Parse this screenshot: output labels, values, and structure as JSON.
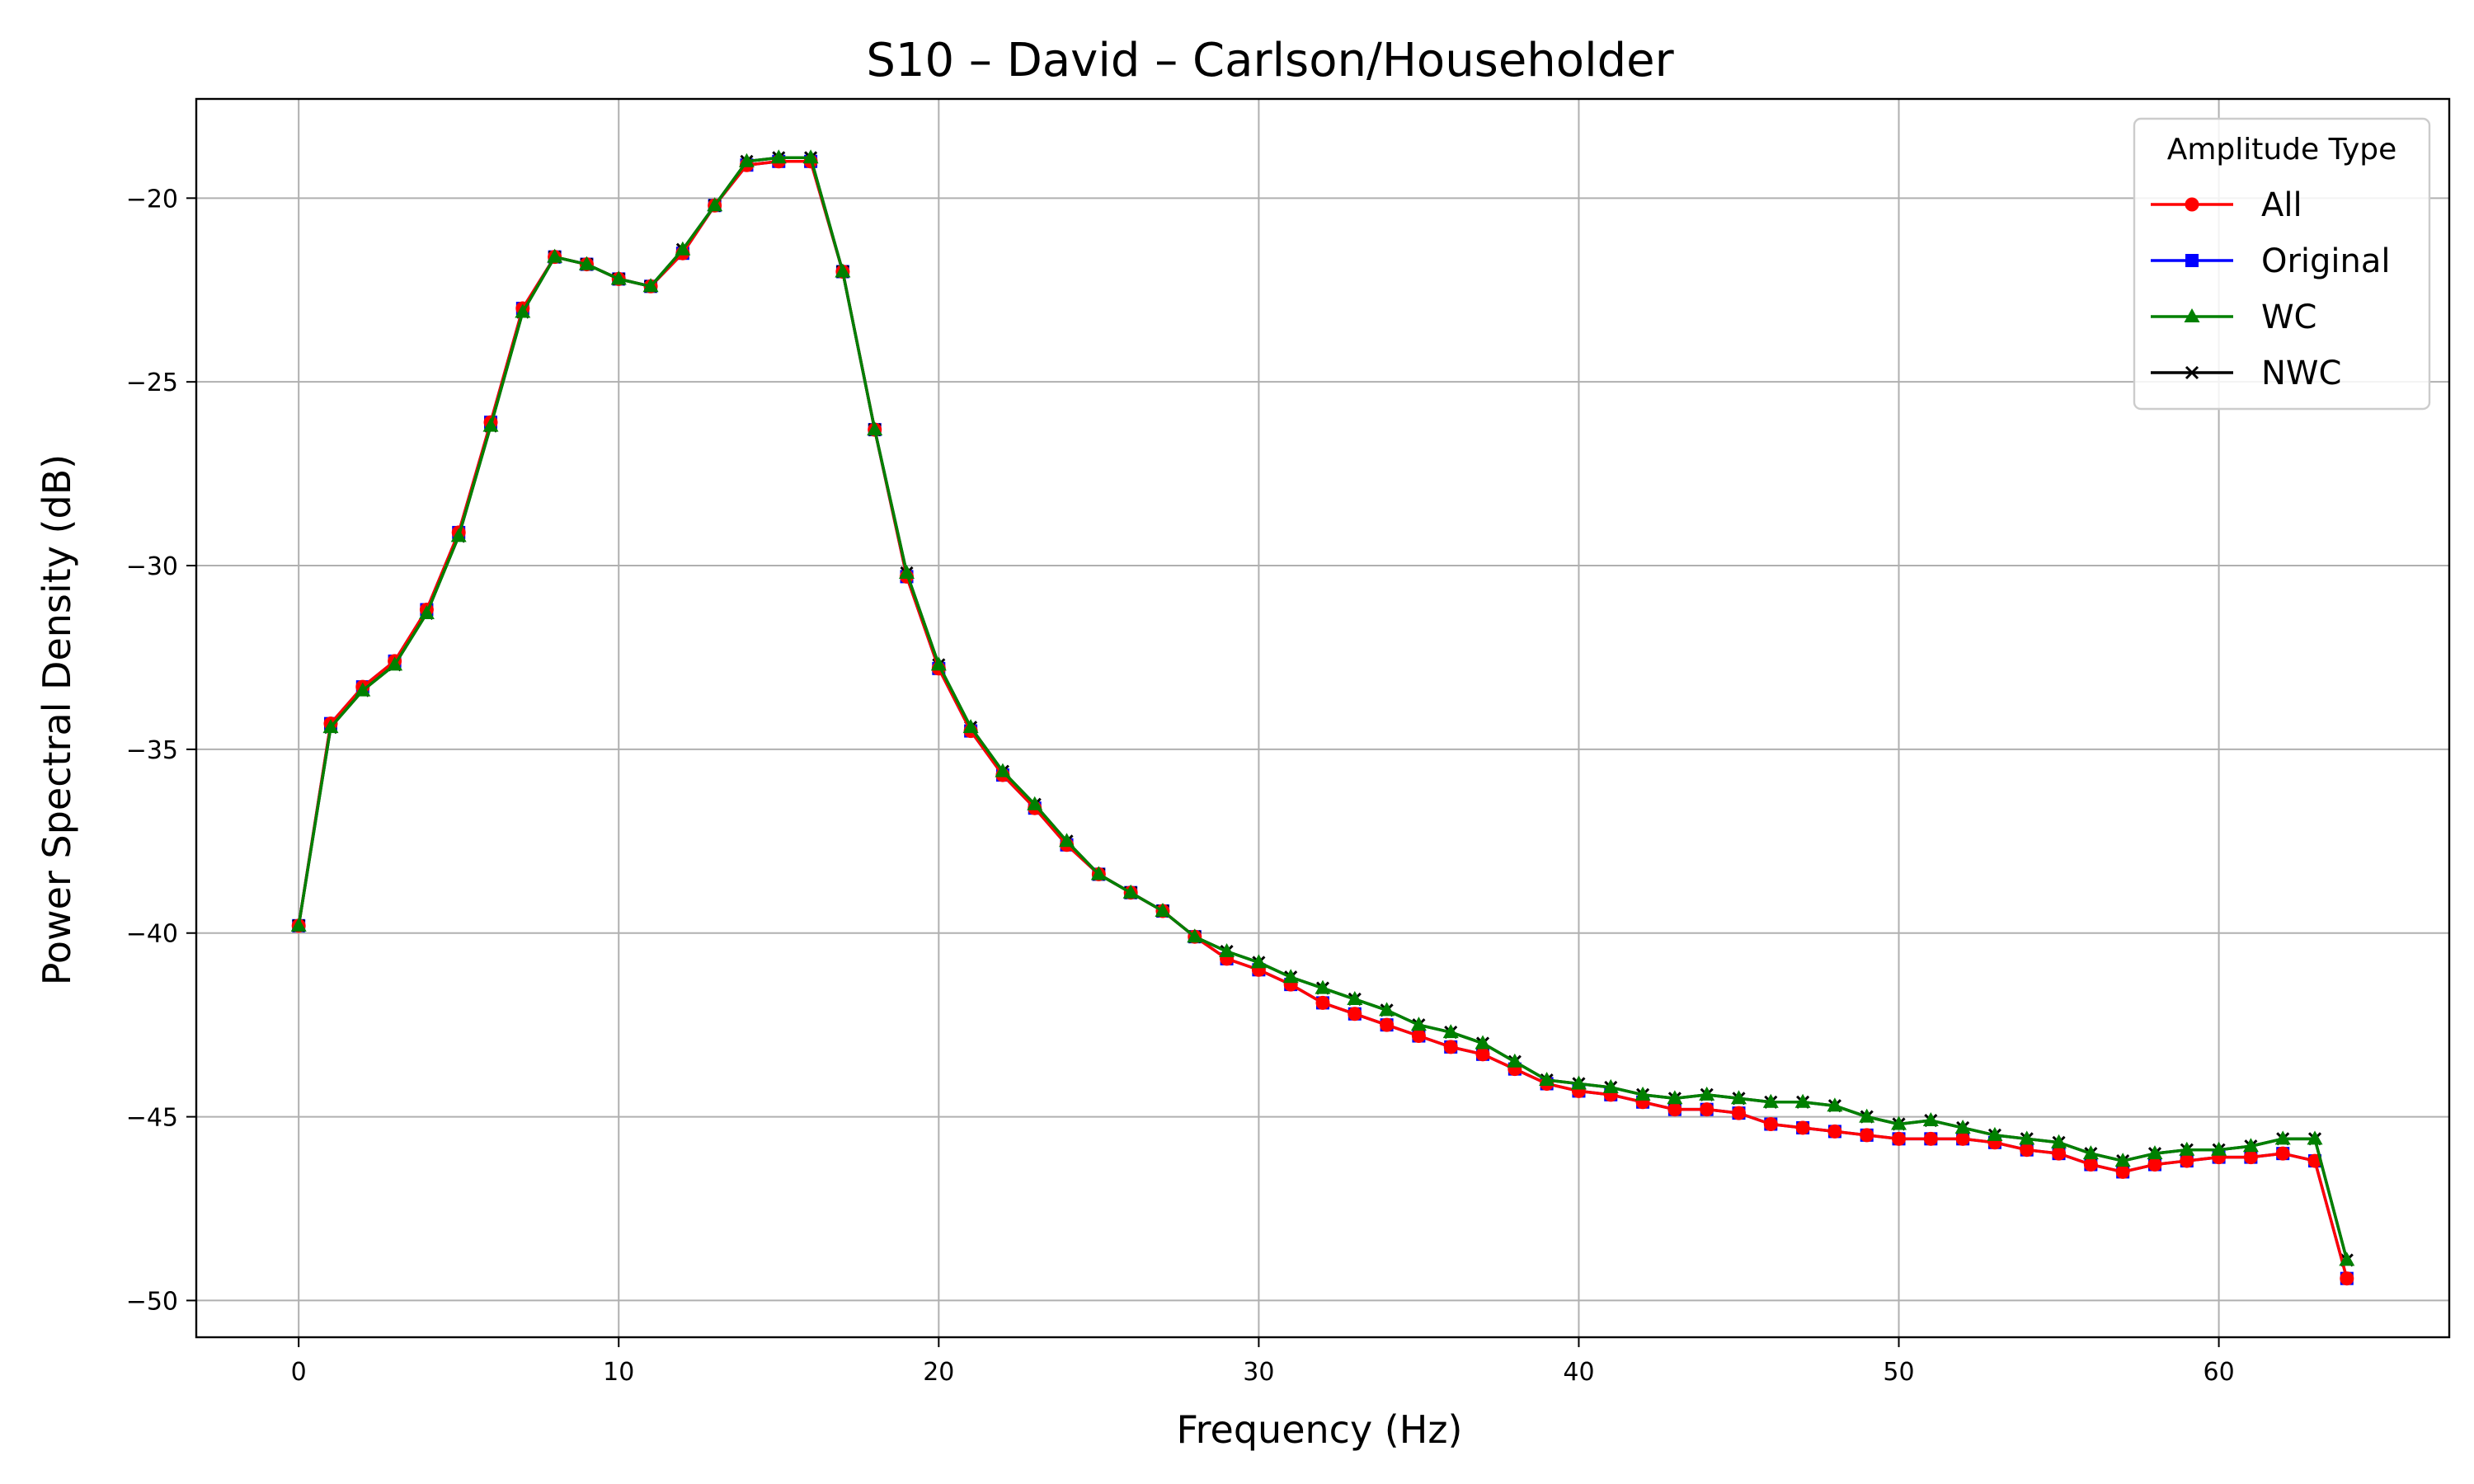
{
  "chart_data": {
    "type": "line",
    "title": "S10 – David – Carlson/Householder",
    "xlabel": "Frequency (Hz)",
    "ylabel": "Power Spectral Density (dB)",
    "xlim": [
      -3.2,
      67.2
    ],
    "ylim": [
      -51,
      -17.3
    ],
    "xticks": [
      0,
      10,
      20,
      30,
      40,
      50,
      60
    ],
    "yticks": [
      -20,
      -25,
      -30,
      -35,
      -40,
      -45,
      -50
    ],
    "xtick_labels": [
      "0",
      "10",
      "20",
      "30",
      "40",
      "50",
      "60"
    ],
    "ytick_labels": [
      "−20",
      "−25",
      "−30",
      "−35",
      "−40",
      "−45",
      "−50"
    ],
    "grid": true,
    "legend": {
      "title": "Amplitude Type",
      "placement": "top-right"
    },
    "x": [
      0,
      1,
      2,
      3,
      4,
      5,
      6,
      7,
      8,
      9,
      10,
      11,
      12,
      13,
      14,
      15,
      16,
      17,
      18,
      19,
      20,
      21,
      22,
      23,
      24,
      25,
      26,
      27,
      28,
      29,
      30,
      31,
      32,
      33,
      34,
      35,
      36,
      37,
      38,
      39,
      40,
      41,
      42,
      43,
      44,
      45,
      46,
      47,
      48,
      49,
      50,
      51,
      52,
      53,
      54,
      55,
      56,
      57,
      58,
      59,
      60,
      61,
      62,
      63,
      64
    ],
    "series": [
      {
        "name": "All",
        "color": "#ff0000",
        "marker": "circle",
        "values": [
          -39.8,
          -34.3,
          -33.3,
          -32.6,
          -31.2,
          -29.1,
          -26.1,
          -23.0,
          -21.6,
          -21.8,
          -22.2,
          -22.4,
          -21.5,
          -20.2,
          -19.1,
          -19.0,
          -19.0,
          -22.0,
          -26.3,
          -30.3,
          -32.8,
          -34.5,
          -35.7,
          -36.6,
          -37.6,
          -38.4,
          -38.9,
          -39.4,
          -40.1,
          -40.7,
          -41.0,
          -41.4,
          -41.9,
          -42.2,
          -42.5,
          -42.8,
          -43.1,
          -43.3,
          -43.7,
          -44.1,
          -44.3,
          -44.4,
          -44.6,
          -44.8,
          -44.8,
          -44.9,
          -45.2,
          -45.3,
          -45.4,
          -45.5,
          -45.6,
          -45.6,
          -45.6,
          -45.7,
          -45.9,
          -46.0,
          -46.3,
          -46.5,
          -46.3,
          -46.2,
          -46.1,
          -46.1,
          -46.0,
          -46.2,
          -49.4
        ]
      },
      {
        "name": "Original",
        "color": "#0000ff",
        "marker": "square",
        "values": [
          -39.8,
          -34.3,
          -33.3,
          -32.6,
          -31.2,
          -29.1,
          -26.1,
          -23.0,
          -21.6,
          -21.8,
          -22.2,
          -22.4,
          -21.5,
          -20.2,
          -19.1,
          -19.0,
          -19.0,
          -22.0,
          -26.3,
          -30.3,
          -32.8,
          -34.5,
          -35.7,
          -36.6,
          -37.6,
          -38.4,
          -38.9,
          -39.4,
          -40.1,
          -40.7,
          -41.0,
          -41.4,
          -41.9,
          -42.2,
          -42.5,
          -42.8,
          -43.1,
          -43.3,
          -43.7,
          -44.1,
          -44.3,
          -44.4,
          -44.6,
          -44.8,
          -44.8,
          -44.9,
          -45.2,
          -45.3,
          -45.4,
          -45.5,
          -45.6,
          -45.6,
          -45.6,
          -45.7,
          -45.9,
          -46.0,
          -46.3,
          -46.5,
          -46.3,
          -46.2,
          -46.1,
          -46.1,
          -46.0,
          -46.2,
          -49.4
        ]
      },
      {
        "name": "WC",
        "color": "#008000",
        "marker": "triangle",
        "values": [
          -39.8,
          -34.4,
          -33.4,
          -32.7,
          -31.3,
          -29.2,
          -26.2,
          -23.1,
          -21.6,
          -21.8,
          -22.2,
          -22.4,
          -21.4,
          -20.2,
          -19.0,
          -18.9,
          -18.9,
          -22.0,
          -26.3,
          -30.2,
          -32.7,
          -34.4,
          -35.6,
          -36.5,
          -37.5,
          -38.4,
          -38.9,
          -39.4,
          -40.1,
          -40.5,
          -40.8,
          -41.2,
          -41.5,
          -41.8,
          -42.1,
          -42.5,
          -42.7,
          -43.0,
          -43.5,
          -44.0,
          -44.1,
          -44.2,
          -44.4,
          -44.5,
          -44.4,
          -44.5,
          -44.6,
          -44.6,
          -44.7,
          -45.0,
          -45.2,
          -45.1,
          -45.3,
          -45.5,
          -45.6,
          -45.7,
          -46.0,
          -46.2,
          -46.0,
          -45.9,
          -45.9,
          -45.8,
          -45.6,
          -45.6,
          -48.9
        ]
      },
      {
        "name": "NWC",
        "color": "#000000",
        "marker": "x",
        "values": [
          -39.8,
          -34.4,
          -33.4,
          -32.7,
          -31.3,
          -29.2,
          -26.2,
          -23.1,
          -21.6,
          -21.8,
          -22.2,
          -22.4,
          -21.4,
          -20.2,
          -19.0,
          -18.9,
          -18.9,
          -22.0,
          -26.3,
          -30.2,
          -32.7,
          -34.4,
          -35.6,
          -36.5,
          -37.5,
          -38.4,
          -38.9,
          -39.4,
          -40.1,
          -40.5,
          -40.8,
          -41.2,
          -41.5,
          -41.8,
          -42.1,
          -42.5,
          -42.7,
          -43.0,
          -43.5,
          -44.0,
          -44.1,
          -44.2,
          -44.4,
          -44.5,
          -44.4,
          -44.5,
          -44.6,
          -44.6,
          -44.7,
          -45.0,
          -45.2,
          -45.1,
          -45.3,
          -45.5,
          -45.6,
          -45.7,
          -46.0,
          -46.2,
          -46.0,
          -45.9,
          -45.9,
          -45.8,
          -45.6,
          -45.6,
          -48.9
        ]
      }
    ],
    "draw_order": [
      "Original",
      "NWC",
      "All",
      "WC"
    ]
  }
}
